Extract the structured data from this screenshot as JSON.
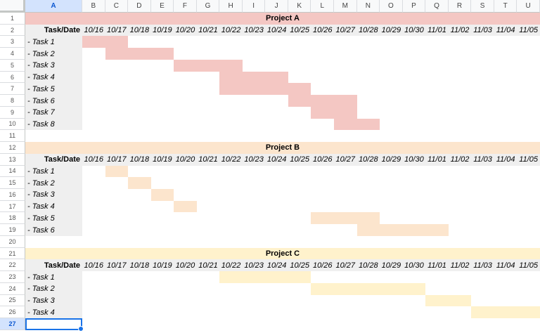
{
  "columns": [
    "A",
    "B",
    "C",
    "D",
    "E",
    "F",
    "G",
    "H",
    "I",
    "J",
    "K",
    "L",
    "M",
    "N",
    "O",
    "P",
    "Q",
    "R",
    "S",
    "T",
    "U"
  ],
  "selected_cell": "A27",
  "total_rows": 27,
  "projects": [
    {
      "title": "Project A",
      "color": "#f4c7c3",
      "header_label": "Task/Date",
      "dates": [
        "10/16",
        "10/17",
        "10/18",
        "10/19",
        "10/20",
        "10/21",
        "10/22",
        "10/23",
        "10/24",
        "10/25",
        "10/26",
        "10/27",
        "10/28",
        "10/29",
        "10/30",
        "11/01",
        "11/02",
        "11/03",
        "11/04",
        "11/05"
      ],
      "tasks": [
        {
          "label": "- Task 1",
          "start": "10/16",
          "end": "10/17"
        },
        {
          "label": "- Task 2",
          "start": "10/17",
          "end": "10/19"
        },
        {
          "label": "- Task 3",
          "start": "10/20",
          "end": "10/22"
        },
        {
          "label": "- Task 4",
          "start": "10/22",
          "end": "10/24"
        },
        {
          "label": "- Task 5",
          "start": "10/22",
          "end": "10/25"
        },
        {
          "label": "- Task 6",
          "start": "10/25",
          "end": "10/27"
        },
        {
          "label": "- Task 7",
          "start": "10/26",
          "end": "10/27"
        },
        {
          "label": "- Task 8",
          "start": "10/27",
          "end": "10/28"
        }
      ]
    },
    {
      "title": "Project B",
      "color": "#fce5cd",
      "header_label": "Task/Date",
      "dates": [
        "10/16",
        "10/17",
        "10/18",
        "10/19",
        "10/20",
        "10/21",
        "10/22",
        "10/23",
        "10/24",
        "10/25",
        "10/26",
        "10/27",
        "10/28",
        "10/29",
        "10/30",
        "11/01",
        "11/02",
        "11/03",
        "11/04",
        "11/05"
      ],
      "tasks": [
        {
          "label": "- Task 1",
          "start": "10/17",
          "end": "10/17"
        },
        {
          "label": "- Task 2",
          "start": "10/18",
          "end": "10/18"
        },
        {
          "label": "- Task 3",
          "start": "10/19",
          "end": "10/19"
        },
        {
          "label": "- Task 4",
          "start": "10/20",
          "end": "10/20"
        },
        {
          "label": "- Task 5",
          "start": "10/26",
          "end": "10/28"
        },
        {
          "label": "- Task 6",
          "start": "10/28",
          "end": "11/01"
        }
      ]
    },
    {
      "title": "Project C",
      "color": "#fff2cc",
      "header_label": "Task/Date",
      "dates": [
        "10/16",
        "10/17",
        "10/18",
        "10/19",
        "10/20",
        "10/21",
        "10/22",
        "10/23",
        "10/24",
        "10/25",
        "10/26",
        "10/27",
        "10/28",
        "10/29",
        "10/30",
        "11/01",
        "11/02",
        "11/03",
        "11/04",
        "11/05"
      ],
      "tasks": [
        {
          "label": "- Task 1",
          "start": "10/22",
          "end": "10/25"
        },
        {
          "label": "- Task 2",
          "start": "10/26",
          "end": "10/30"
        },
        {
          "label": "- Task 3",
          "start": "11/01",
          "end": "11/02"
        },
        {
          "label": "- Task 4",
          "start": "11/03",
          "end": "11/05"
        }
      ]
    }
  ]
}
